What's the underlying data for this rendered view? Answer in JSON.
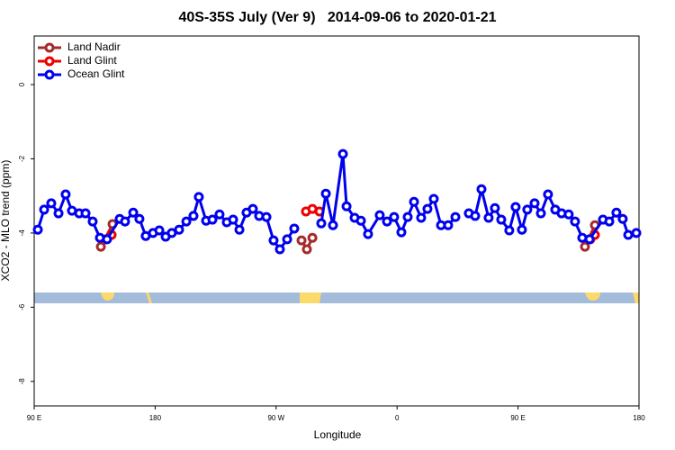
{
  "chart_data": {
    "type": "line",
    "title": "40S-35S July (Ver 9)   2014-09-06 to 2020-01-21",
    "x_label": "Longitude",
    "y_label": "XCO2 - MLO trend (ppm)",
    "xlim": [
      90,
      540
    ],
    "ylim": [
      -8.66,
      1.31
    ],
    "xticks": [
      {
        "value": 90,
        "label": "90 E"
      },
      {
        "value": 180,
        "label": "180"
      },
      {
        "value": 270,
        "label": "90 W"
      },
      {
        "value": 360,
        "label": "0"
      },
      {
        "value": 450,
        "label": "90 E"
      },
      {
        "value": 540,
        "label": "180"
      }
    ],
    "yticks": [
      0,
      -2,
      -4,
      -6,
      -8
    ],
    "legend": "top-left",
    "series": [
      {
        "name": "Land Nadir",
        "color": "#a52a2a",
        "x": [
          139.6,
          148.3,
          null,
          288.9,
          292.9,
          297.0,
          null,
          499.8,
          507.2
        ],
        "values": [
          -4.37,
          -3.76,
          null,
          -4.2,
          -4.44,
          -4.13,
          null,
          -4.37,
          -3.79
        ]
      },
      {
        "name": "Land Glint",
        "color": "#ee0000",
        "x": [
          143.6,
          147.6,
          null,
          292.2,
          297.0,
          302.3,
          null,
          503.8,
          507.2
        ],
        "values": [
          -4.17,
          -4.05,
          null,
          -3.42,
          -3.35,
          -3.42,
          null,
          -4.17,
          -4.05
        ]
      },
      {
        "name": "Ocean Glint",
        "color": "#0000ee",
        "x": [
          92.7,
          97.4,
          102.7,
          108.1,
          113.4,
          118.1,
          123.5,
          128.2,
          133.5,
          138.9,
          144.2,
          153.6,
          157.6,
          163.7,
          168.3,
          173.0,
          178.4,
          183.1,
          187.8,
          192.4,
          197.8,
          203.2,
          208.5,
          212.5,
          217.9,
          222.6,
          227.9,
          233.3,
          238.0,
          242.7,
          248.0,
          252.7,
          257.4,
          262.8,
          268.1,
          272.8,
          278.2,
          283.5,
          null,
          303.6,
          307.0,
          312.3,
          319.7,
          322.4,
          328.4,
          333.1,
          338.4,
          347.1,
          352.5,
          357.8,
          363.2,
          367.9,
          372.6,
          377.9,
          382.6,
          387.3,
          392.7,
          398.0,
          403.4,
          null,
          413.4,
          418.1,
          422.8,
          428.1,
          432.8,
          437.5,
          443.5,
          448.2,
          452.9,
          456.9,
          462.3,
          467.0,
          472.3,
          477.7,
          482.4,
          487.7,
          492.4,
          497.8,
          503.2,
          513.2,
          517.9,
          523.2,
          527.9,
          532.0,
          538.0
        ],
        "values": [
          -3.91,
          -3.37,
          -3.2,
          -3.47,
          -2.96,
          -3.4,
          -3.47,
          -3.47,
          -3.69,
          -4.13,
          -4.17,
          -3.62,
          -3.69,
          -3.45,
          -3.62,
          -4.08,
          -4.0,
          -3.93,
          -4.1,
          -4.0,
          -3.91,
          -3.69,
          -3.54,
          -3.03,
          -3.67,
          -3.64,
          -3.5,
          -3.71,
          -3.64,
          -3.91,
          -3.45,
          -3.35,
          -3.54,
          -3.57,
          -4.2,
          -4.44,
          -4.17,
          -3.88,
          null,
          -3.74,
          -2.94,
          -3.79,
          -1.87,
          -3.28,
          -3.59,
          -3.67,
          -4.03,
          -3.52,
          -3.69,
          -3.57,
          -3.98,
          -3.57,
          -3.16,
          -3.59,
          -3.35,
          -3.08,
          -3.79,
          -3.79,
          -3.57,
          null,
          -3.47,
          -3.54,
          -2.82,
          -3.59,
          -3.33,
          -3.64,
          -3.93,
          -3.3,
          -3.91,
          -3.37,
          -3.2,
          -3.47,
          -2.96,
          -3.37,
          -3.47,
          -3.5,
          -3.69,
          -4.13,
          -4.17,
          -3.64,
          -3.69,
          -3.45,
          -3.62,
          -4.05,
          -4.0
        ]
      }
    ]
  }
}
